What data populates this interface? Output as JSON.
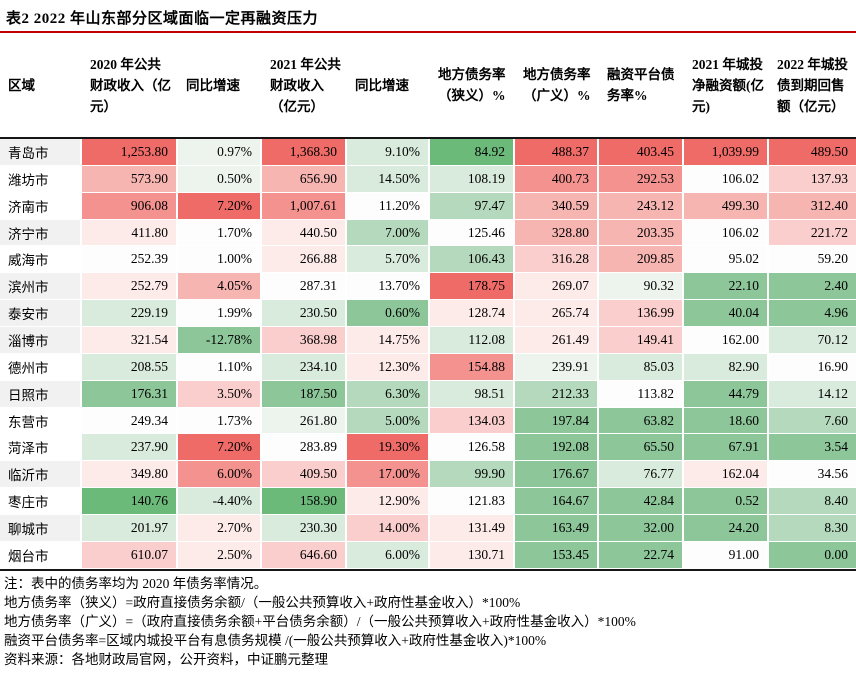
{
  "title": "表2  2022 年山东部分区域面临一定再融资压力",
  "accent_colors": {
    "title_rule": "#c00000",
    "table_border": "#161616",
    "region_shade": "#f1f1f1"
  },
  "palette": {
    "R5": "#ee6b67",
    "R4": "#f3928f",
    "R3": "#f7b5b2",
    "R2": "#f9cecc",
    "R1": "#fdebea",
    "W": "#fdfdfd",
    "G1": "#edf4ee",
    "G2": "#d9ebdc",
    "G3": "#b4d9bc",
    "G4": "#8cc699",
    "G5": "#6cba7a"
  },
  "table": {
    "columns": [
      "区域",
      "2020 年公共财政收入（亿元）",
      "同比增速",
      "2021 年公共财政收入（亿元）",
      "同比增速",
      "地方债务率（狭义）%",
      "地方债务率（广义）%",
      "融资平台债务率%",
      "2021 年城投净融资额(亿元)",
      "2022 年城投债到期回售额（亿元）"
    ],
    "rows": [
      {
        "region": "青岛市",
        "shade": true,
        "cells": [
          [
            "1,253.80",
            "R5"
          ],
          [
            "0.97%",
            "G1"
          ],
          [
            "1,368.30",
            "R5"
          ],
          [
            "9.10%",
            "G2"
          ],
          [
            "84.92",
            "G5"
          ],
          [
            "488.37",
            "R5"
          ],
          [
            "403.45",
            "R5"
          ],
          [
            "1,039.99",
            "R5"
          ],
          [
            "489.50",
            "R5"
          ]
        ]
      },
      {
        "region": "潍坊市",
        "shade": false,
        "cells": [
          [
            "573.90",
            "R3"
          ],
          [
            "0.50%",
            "G1"
          ],
          [
            "656.90",
            "R3"
          ],
          [
            "14.50%",
            "G2"
          ],
          [
            "108.19",
            "G2"
          ],
          [
            "400.73",
            "R4"
          ],
          [
            "292.53",
            "R4"
          ],
          [
            "106.02",
            "W"
          ],
          [
            "137.93",
            "R2"
          ]
        ]
      },
      {
        "region": "济南市",
        "shade": false,
        "cells": [
          [
            "906.08",
            "R4"
          ],
          [
            "7.20%",
            "R5"
          ],
          [
            "1,007.61",
            "R4"
          ],
          [
            "11.20%",
            "W"
          ],
          [
            "97.47",
            "G3"
          ],
          [
            "340.59",
            "R3"
          ],
          [
            "243.12",
            "R3"
          ],
          [
            "499.30",
            "R3"
          ],
          [
            "312.40",
            "R3"
          ]
        ]
      },
      {
        "region": "济宁市",
        "shade": true,
        "cells": [
          [
            "411.80",
            "R1"
          ],
          [
            "1.70%",
            "W"
          ],
          [
            "440.50",
            "R1"
          ],
          [
            "7.00%",
            "G3"
          ],
          [
            "125.46",
            "W"
          ],
          [
            "328.80",
            "R3"
          ],
          [
            "203.35",
            "R3"
          ],
          [
            "106.02",
            "W"
          ],
          [
            "221.72",
            "R2"
          ]
        ]
      },
      {
        "region": "威海市",
        "shade": false,
        "cells": [
          [
            "252.39",
            "W"
          ],
          [
            "1.00%",
            "W"
          ],
          [
            "266.88",
            "R1"
          ],
          [
            "5.70%",
            "G2"
          ],
          [
            "106.43",
            "G3"
          ],
          [
            "316.28",
            "R2"
          ],
          [
            "209.85",
            "R3"
          ],
          [
            "95.02",
            "W"
          ],
          [
            "59.20",
            "W"
          ]
        ]
      },
      {
        "region": "滨州市",
        "shade": true,
        "cells": [
          [
            "252.79",
            "R1"
          ],
          [
            "4.05%",
            "R3"
          ],
          [
            "287.31",
            "W"
          ],
          [
            "13.70%",
            "W"
          ],
          [
            "178.75",
            "R5"
          ],
          [
            "269.07",
            "R1"
          ],
          [
            "90.32",
            "G1"
          ],
          [
            "22.10",
            "G4"
          ],
          [
            "2.40",
            "G4"
          ]
        ]
      },
      {
        "region": "泰安市",
        "shade": true,
        "cells": [
          [
            "229.19",
            "G2"
          ],
          [
            "1.99%",
            "W"
          ],
          [
            "230.50",
            "G2"
          ],
          [
            "0.60%",
            "G4"
          ],
          [
            "128.74",
            "R1"
          ],
          [
            "265.74",
            "R1"
          ],
          [
            "136.99",
            "R2"
          ],
          [
            "40.04",
            "G4"
          ],
          [
            "4.96",
            "G4"
          ]
        ]
      },
      {
        "region": "淄博市",
        "shade": true,
        "cells": [
          [
            "321.54",
            "R1"
          ],
          [
            "-12.78%",
            "G4"
          ],
          [
            "368.98",
            "R2"
          ],
          [
            "14.75%",
            "R1"
          ],
          [
            "112.08",
            "G2"
          ],
          [
            "261.49",
            "R1"
          ],
          [
            "149.41",
            "R2"
          ],
          [
            "162.00",
            "W"
          ],
          [
            "70.12",
            "G2"
          ]
        ]
      },
      {
        "region": "德州市",
        "shade": false,
        "cells": [
          [
            "208.55",
            "G2"
          ],
          [
            "1.10%",
            "W"
          ],
          [
            "234.10",
            "G2"
          ],
          [
            "12.30%",
            "R1"
          ],
          [
            "154.88",
            "R4"
          ],
          [
            "239.91",
            "G1"
          ],
          [
            "85.03",
            "G2"
          ],
          [
            "82.90",
            "G2"
          ],
          [
            "16.90",
            "W"
          ]
        ]
      },
      {
        "region": "日照市",
        "shade": true,
        "cells": [
          [
            "176.31",
            "G4"
          ],
          [
            "3.50%",
            "R2"
          ],
          [
            "187.50",
            "G4"
          ],
          [
            "6.30%",
            "G3"
          ],
          [
            "98.51",
            "G2"
          ],
          [
            "212.33",
            "G3"
          ],
          [
            "113.82",
            "W"
          ],
          [
            "44.79",
            "G4"
          ],
          [
            "14.12",
            "G2"
          ]
        ]
      },
      {
        "region": "东营市",
        "shade": false,
        "cells": [
          [
            "249.34",
            "W"
          ],
          [
            "1.73%",
            "W"
          ],
          [
            "261.80",
            "G1"
          ],
          [
            "5.00%",
            "G3"
          ],
          [
            "134.03",
            "R2"
          ],
          [
            "197.84",
            "G4"
          ],
          [
            "63.82",
            "G4"
          ],
          [
            "18.60",
            "G4"
          ],
          [
            "7.60",
            "G3"
          ]
        ]
      },
      {
        "region": "菏泽市",
        "shade": false,
        "cells": [
          [
            "237.90",
            "G2"
          ],
          [
            "7.20%",
            "R5"
          ],
          [
            "283.89",
            "W"
          ],
          [
            "19.30%",
            "R5"
          ],
          [
            "126.58",
            "W"
          ],
          [
            "192.08",
            "G4"
          ],
          [
            "65.50",
            "G4"
          ],
          [
            "67.91",
            "G4"
          ],
          [
            "3.54",
            "G4"
          ]
        ]
      },
      {
        "region": "临沂市",
        "shade": true,
        "cells": [
          [
            "349.80",
            "R1"
          ],
          [
            "6.00%",
            "R4"
          ],
          [
            "409.50",
            "R2"
          ],
          [
            "17.00%",
            "R4"
          ],
          [
            "99.90",
            "G3"
          ],
          [
            "176.67",
            "G4"
          ],
          [
            "76.77",
            "G2"
          ],
          [
            "162.04",
            "R1"
          ],
          [
            "34.56",
            "W"
          ]
        ]
      },
      {
        "region": "枣庄市",
        "shade": false,
        "cells": [
          [
            "140.76",
            "G5"
          ],
          [
            "-4.40%",
            "G2"
          ],
          [
            "158.90",
            "G5"
          ],
          [
            "12.90%",
            "R1"
          ],
          [
            "121.83",
            "W"
          ],
          [
            "164.67",
            "G4"
          ],
          [
            "42.84",
            "G4"
          ],
          [
            "0.52",
            "G4"
          ],
          [
            "8.40",
            "G3"
          ]
        ]
      },
      {
        "region": "聊城市",
        "shade": true,
        "cells": [
          [
            "201.97",
            "G2"
          ],
          [
            "2.70%",
            "R1"
          ],
          [
            "230.30",
            "G2"
          ],
          [
            "14.00%",
            "R2"
          ],
          [
            "131.49",
            "R1"
          ],
          [
            "163.49",
            "G4"
          ],
          [
            "32.00",
            "G4"
          ],
          [
            "24.20",
            "G4"
          ],
          [
            "8.30",
            "G3"
          ]
        ]
      },
      {
        "region": "烟台市",
        "shade": false,
        "cells": [
          [
            "610.07",
            "R2"
          ],
          [
            "2.50%",
            "R1"
          ],
          [
            "646.60",
            "R2"
          ],
          [
            "6.00%",
            "G2"
          ],
          [
            "130.71",
            "R1"
          ],
          [
            "153.45",
            "G4"
          ],
          [
            "22.74",
            "G4"
          ],
          [
            "91.00",
            "W"
          ],
          [
            "0.00",
            "G4"
          ]
        ]
      }
    ]
  },
  "notes": [
    "注：表中的债务率均为 2020 年债务率情况。",
    "地方债务率（狭义）=政府直接债务余额/（一般公共预算收入+政府性基金收入）*100%",
    "地方债务率（广义）=（政府直接债务余额+平台债务余额）/（一般公共预算收入+政府性基金收入）*100%",
    "融资平台债务率=区域内城投平台有息债务规模 /(一般公共预算收入+政府性基金收入)*100%",
    "资料来源：各地财政局官网，公开资料，中证鹏元整理"
  ]
}
